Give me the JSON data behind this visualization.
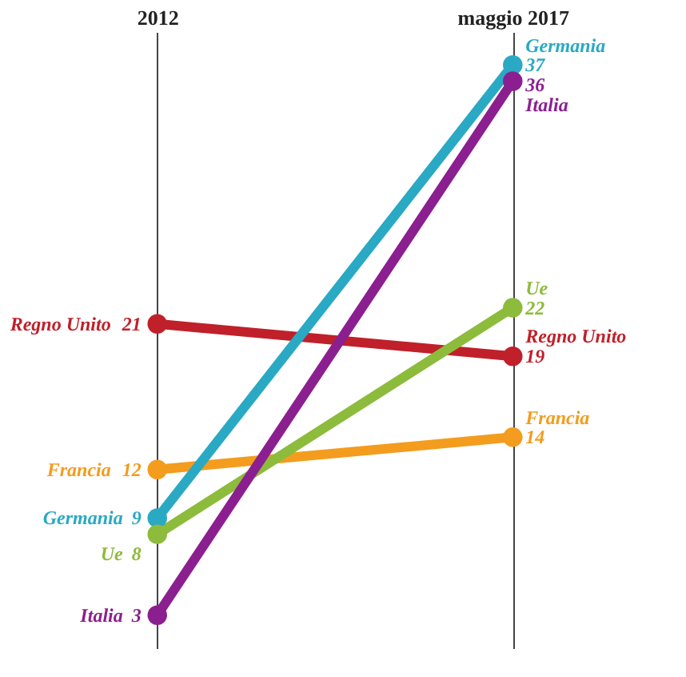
{
  "chart_data": {
    "type": "line",
    "categories": [
      "2012",
      "maggio 2017"
    ],
    "data_labels": true,
    "grid": "x",
    "legend": false,
    "marker": "circle",
    "line_style": "solid",
    "series": [
      {
        "name": "Regno Unito",
        "color": "#c0202a",
        "values": [
          21,
          19
        ]
      },
      {
        "name": "Francia",
        "color": "#f39c1e",
        "values": [
          12,
          14
        ]
      },
      {
        "name": "Germania",
        "color": "#2aa9c4",
        "values": [
          9,
          37
        ]
      },
      {
        "name": "Ue",
        "color": "#8dbb3c",
        "values": [
          8,
          22
        ]
      },
      {
        "name": "Italia",
        "color": "#8b1f8f",
        "values": [
          3,
          36
        ]
      }
    ]
  }
}
